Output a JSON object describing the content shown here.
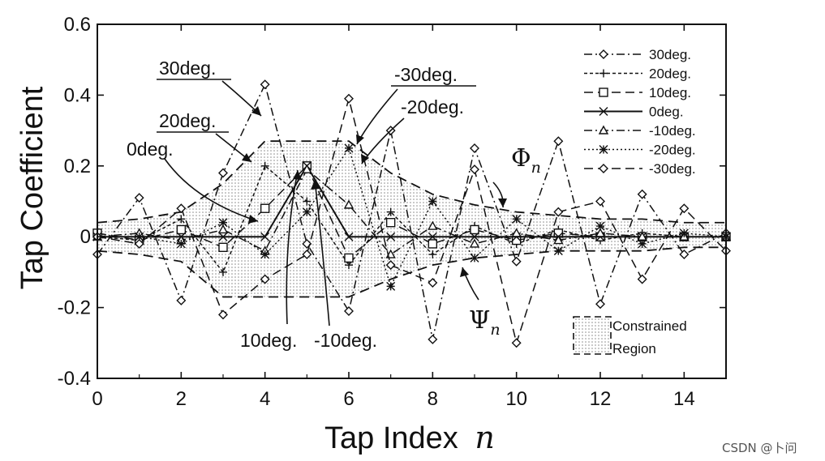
{
  "chart_data": {
    "type": "line",
    "xlabel": "Tap Index",
    "xlabel_var": "n",
    "ylabel": "Tap Coefficient",
    "xlim": [
      0,
      15
    ],
    "ylim": [
      -0.4,
      0.6
    ],
    "x_ticks": [
      "0",
      "2",
      "4",
      "6",
      "8",
      "10",
      "12",
      "14"
    ],
    "y_ticks": [
      "-0.4",
      "-0.2",
      "0",
      "0.2",
      "0.4",
      "0.6"
    ],
    "grid": false,
    "legend_position": "top-right",
    "x": [
      0,
      1,
      2,
      3,
      4,
      5,
      6,
      7,
      8,
      9,
      10,
      11,
      12,
      13,
      14,
      15
    ],
    "series": [
      {
        "name": "30deg.",
        "marker": "diamond",
        "dash": "dash-dot",
        "values": [
          -0.05,
          0.11,
          -0.18,
          0.18,
          0.43,
          -0.02,
          -0.21,
          0.3,
          -0.29,
          0.25,
          -0.07,
          0.27,
          -0.19,
          0.12,
          -0.05,
          0.01
        ]
      },
      {
        "name": "20deg.",
        "marker": "plus",
        "dash": "dash-short",
        "values": [
          0,
          -0.01,
          0.05,
          -0.1,
          0.2,
          0.1,
          -0.08,
          0.07,
          -0.05,
          0.03,
          -0.02,
          0.02,
          -0.01,
          0.01,
          0,
          0
        ]
      },
      {
        "name": "10deg.",
        "marker": "square",
        "dash": "dash-long",
        "values": [
          0.01,
          -0.01,
          0.02,
          -0.03,
          0.08,
          0.2,
          -0.06,
          0.04,
          -0.02,
          0.02,
          -0.01,
          0.01,
          0,
          0,
          0,
          0
        ]
      },
      {
        "name": "0deg.",
        "marker": "x",
        "dash": "solid",
        "values": [
          0,
          0,
          0,
          0,
          0,
          0.2,
          0,
          0,
          0,
          0,
          0,
          0,
          0,
          0,
          0,
          0
        ]
      },
      {
        "name": "-10deg.",
        "marker": "triangle",
        "dash": "dash-dot",
        "values": [
          0,
          0.01,
          -0.01,
          0.02,
          -0.04,
          0.19,
          0.09,
          -0.05,
          0.03,
          -0.02,
          0.01,
          -0.01,
          0.01,
          0,
          0,
          0
        ]
      },
      {
        "name": "-20deg.",
        "marker": "asterisk",
        "dash": "dotted",
        "values": [
          0,
          0,
          -0.02,
          0.04,
          -0.05,
          0.07,
          0.25,
          -0.14,
          0.1,
          -0.06,
          0.05,
          -0.04,
          0.03,
          -0.02,
          0.01,
          0
        ]
      },
      {
        "name": "-30deg.",
        "marker": "diamond",
        "dash": "dash-long",
        "values": [
          0,
          -0.02,
          0.08,
          -0.22,
          -0.12,
          -0.05,
          0.39,
          -0.08,
          -0.13,
          0.19,
          -0.3,
          0.07,
          0.1,
          -0.12,
          0.08,
          -0.04
        ]
      }
    ],
    "bounds": {
      "upper_label": "Φ",
      "lower_label": "Ψ",
      "bound_subscript": "n",
      "upper": [
        0.04,
        0.05,
        0.07,
        0.15,
        0.27,
        0.27,
        0.27,
        0.18,
        0.12,
        0.09,
        0.07,
        0.06,
        0.05,
        0.05,
        0.04,
        0.04
      ],
      "lower": [
        -0.04,
        -0.05,
        -0.07,
        -0.17,
        -0.17,
        -0.17,
        -0.17,
        -0.12,
        -0.08,
        -0.06,
        -0.05,
        -0.04,
        -0.04,
        -0.04,
        -0.03,
        -0.03
      ]
    },
    "constrained_region_label_line1": "Constrained",
    "constrained_region_label_line2": "Region",
    "annotations": {
      "a30": "30deg.",
      "a20": "20deg.",
      "a0": "0deg.",
      "am30": "-30deg.",
      "am20": "-20deg.",
      "a10": "10deg.",
      "am10": "-10deg."
    }
  },
  "watermark": "CSDN @卜问"
}
